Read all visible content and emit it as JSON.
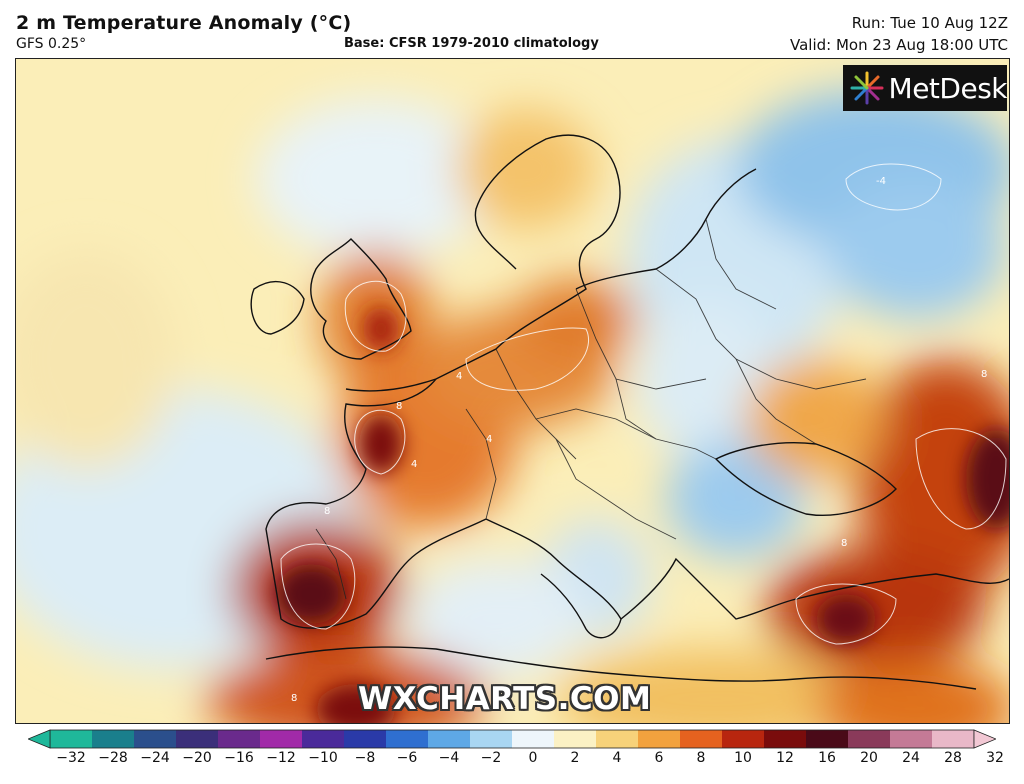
{
  "header": {
    "title": "2 m Temperature Anomaly (°C)",
    "model": "GFS 0.25°",
    "base": "Base: CFSR 1979-2010 climatology",
    "run": "Run: Tue 10 Aug 12Z",
    "valid": "Valid: Mon 23 Aug 18:00 UTC"
  },
  "logo": {
    "text": "MetDesk",
    "icon": "metdesk-starburst-icon"
  },
  "watermark": "WXCHARTS.COM",
  "colorbar": {
    "ticks": [
      "−32",
      "−28",
      "−24",
      "−20",
      "−16",
      "−12",
      "−10",
      "−8",
      "−6",
      "−4",
      "−2",
      "0",
      "2",
      "4",
      "6",
      "8",
      "10",
      "12",
      "16",
      "20",
      "24",
      "28",
      "32"
    ],
    "colors": [
      "#1fb89a",
      "#1a7f8c",
      "#2b4f8c",
      "#3b2f7a",
      "#6a2a8c",
      "#a12aa8",
      "#4a2a9a",
      "#2a3aa8",
      "#2f6fd0",
      "#5ea8e6",
      "#a9d6f2",
      "#eef6fb",
      "#fbf1c4",
      "#f7d27a",
      "#f2a23e",
      "#e5621f",
      "#b8260f",
      "#7a0c0c",
      "#4a0a18",
      "#8a3a5a",
      "#c47a96",
      "#e9b8c8"
    ]
  },
  "map": {
    "region": "Europe",
    "contour_labels": [
      "4",
      "8",
      "-4",
      "4",
      "8",
      "8",
      "8",
      "4",
      "8"
    ]
  }
}
